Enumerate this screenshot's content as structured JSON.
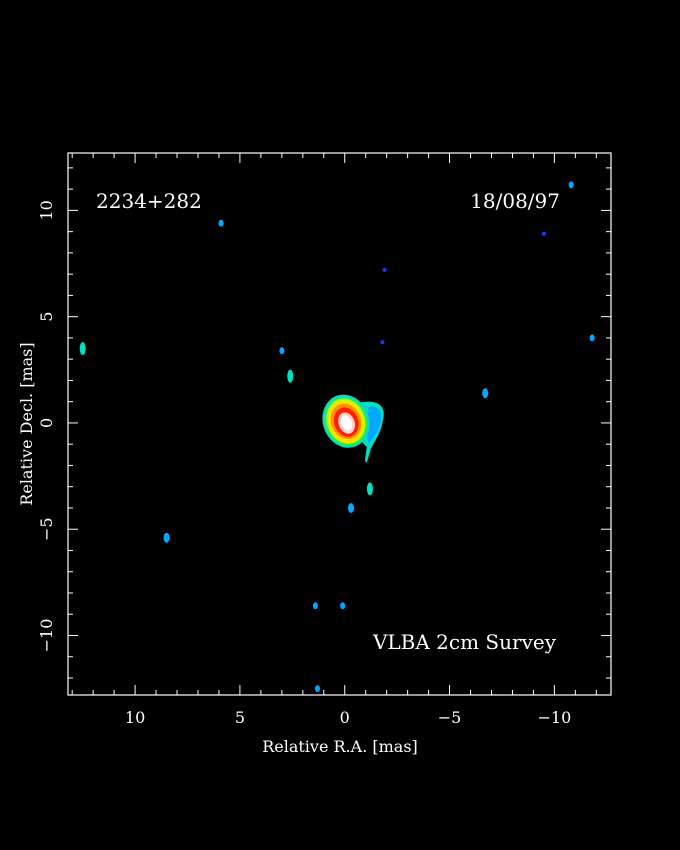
{
  "source_name": "2234+282",
  "epoch": "18/08/97",
  "survey_label": "VLBA 2cm Survey",
  "axes": {
    "xlabel": "Relative R.A. [mas]",
    "ylabel": "Relative Decl. [mas]",
    "xlim": [
      13.2,
      -12.7
    ],
    "ylim": [
      -12.8,
      12.7
    ],
    "xticks": [
      {
        "value": 10,
        "label": "10"
      },
      {
        "value": 5,
        "label": "5"
      },
      {
        "value": 0,
        "label": "0"
      },
      {
        "value": -5,
        "label": "−5"
      },
      {
        "value": -10,
        "label": "−10"
      }
    ],
    "yticks": [
      {
        "value": 10,
        "label": "10"
      },
      {
        "value": 5,
        "label": "5"
      },
      {
        "value": 0,
        "label": "0"
      },
      {
        "value": -5,
        "label": "−5"
      },
      {
        "value": -10,
        "label": "−10"
      }
    ]
  },
  "colors": {
    "background": "#000000",
    "frame": "#ffffff",
    "colormap": [
      "#0a40ff",
      "#00a8ff",
      "#00e0c0",
      "#30e860",
      "#c0ff00",
      "#ffe000",
      "#ff9000",
      "#ff2000",
      "#ffd0d0",
      "#ffffff"
    ]
  },
  "image_features": {
    "core": {
      "ra": -0.1,
      "dec": 0.1,
      "description": "bright compact core with extension to the south-west"
    },
    "noise_spots": [
      {
        "ra": 12.5,
        "dec": 3.5,
        "level": 3
      },
      {
        "ra": 5.9,
        "dec": 9.4,
        "level": 1
      },
      {
        "ra": 3.0,
        "dec": 3.4,
        "level": 1
      },
      {
        "ra": 2.6,
        "dec": 2.2,
        "level": 3
      },
      {
        "ra": 8.5,
        "dec": -5.4,
        "level": 2
      },
      {
        "ra": 1.4,
        "dec": -8.6,
        "level": 1
      },
      {
        "ra": 0.1,
        "dec": -8.6,
        "level": 1
      },
      {
        "ra": 1.3,
        "dec": -12.5,
        "level": 1
      },
      {
        "ra": -0.3,
        "dec": -4.0,
        "level": 2
      },
      {
        "ra": -1.2,
        "dec": -3.1,
        "level": 3
      },
      {
        "ra": -1.8,
        "dec": 3.8,
        "level": 0
      },
      {
        "ra": -1.9,
        "dec": 7.2,
        "level": 0
      },
      {
        "ra": -6.7,
        "dec": 1.4,
        "level": 2
      },
      {
        "ra": -9.5,
        "dec": 8.9,
        "level": 0
      },
      {
        "ra": -10.8,
        "dec": 11.2,
        "level": 1
      },
      {
        "ra": -11.8,
        "dec": 4.0,
        "level": 1
      }
    ]
  }
}
